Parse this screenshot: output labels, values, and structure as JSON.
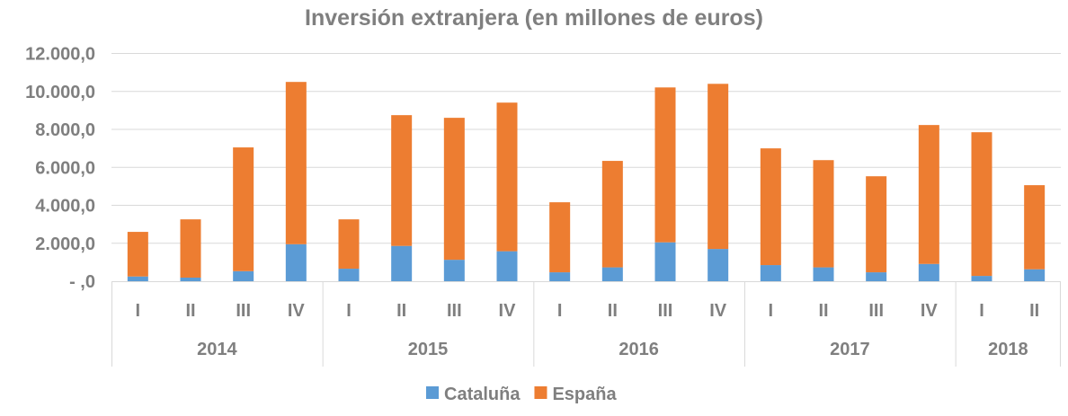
{
  "chart_data": {
    "type": "bar",
    "stacked": true,
    "title": "Inversión extranjera (en millones de euros)",
    "xlabel": "",
    "ylabel": "",
    "ylim": [
      0,
      12000
    ],
    "yticks": [
      0,
      2000,
      4000,
      6000,
      8000,
      10000,
      12000
    ],
    "ytick_labels": [
      " - ,0",
      "2.000,0",
      "4.000,0",
      "6.000,0",
      "8.000,0",
      "10.000,0",
      "12.000,0"
    ],
    "grid": true,
    "legend_position": "bottom",
    "groups": [
      {
        "label": "2014",
        "categories": [
          "I",
          "II",
          "III",
          "IV"
        ]
      },
      {
        "label": "2015",
        "categories": [
          "I",
          "II",
          "III",
          "IV"
        ]
      },
      {
        "label": "2016",
        "categories": [
          "I",
          "II",
          "III",
          "IV"
        ]
      },
      {
        "label": "2017",
        "categories": [
          "I",
          "II",
          "III",
          "IV"
        ]
      },
      {
        "label": "2018",
        "categories": [
          "I",
          "II"
        ]
      }
    ],
    "series": [
      {
        "name": "Cataluña",
        "color": "#5b9bd5",
        "values": [
          250,
          190,
          530,
          1950,
          660,
          1860,
          1130,
          1580,
          470,
          730,
          2050,
          1700,
          850,
          730,
          470,
          910,
          280,
          630
        ]
      },
      {
        "name": "España",
        "color": "#ed7d31",
        "values": [
          2350,
          3070,
          6520,
          8550,
          2600,
          6890,
          7480,
          7830,
          3690,
          5610,
          8160,
          8700,
          6150,
          5650,
          5060,
          7320,
          7570,
          4430
        ]
      }
    ]
  }
}
